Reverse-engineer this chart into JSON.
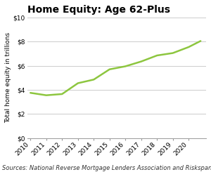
{
  "title": "Home Equity: Age 62-Plus",
  "xlabel": "",
  "ylabel": "Total home equity in trillions",
  "source": "Sources: National Reverse Mortgage Lenders Association and Riskspan.",
  "years": [
    2010,
    2011,
    2012,
    2013,
    2014,
    2015,
    2016,
    2017,
    2018,
    2019,
    2020,
    2020.75
  ],
  "values": [
    3.75,
    3.55,
    3.65,
    4.55,
    4.85,
    5.7,
    5.95,
    6.35,
    6.85,
    7.05,
    7.55,
    8.05
  ],
  "line_color": "#8DC63F",
  "line_width": 1.8,
  "ylim": [
    0,
    10
  ],
  "yticks": [
    0,
    2,
    4,
    6,
    8,
    10
  ],
  "ytick_labels": [
    "$0",
    "$2",
    "$4",
    "$6",
    "$8",
    "$10"
  ],
  "xlim": [
    2009.8,
    2021.1
  ],
  "xticks": [
    2010,
    2011,
    2012,
    2013,
    2014,
    2015,
    2016,
    2017,
    2018,
    2019,
    2020
  ],
  "background_color": "#ffffff",
  "grid_color": "#cccccc",
  "title_fontsize": 10,
  "axis_fontsize": 6.5,
  "tick_fontsize": 6.5,
  "source_fontsize": 6.0
}
